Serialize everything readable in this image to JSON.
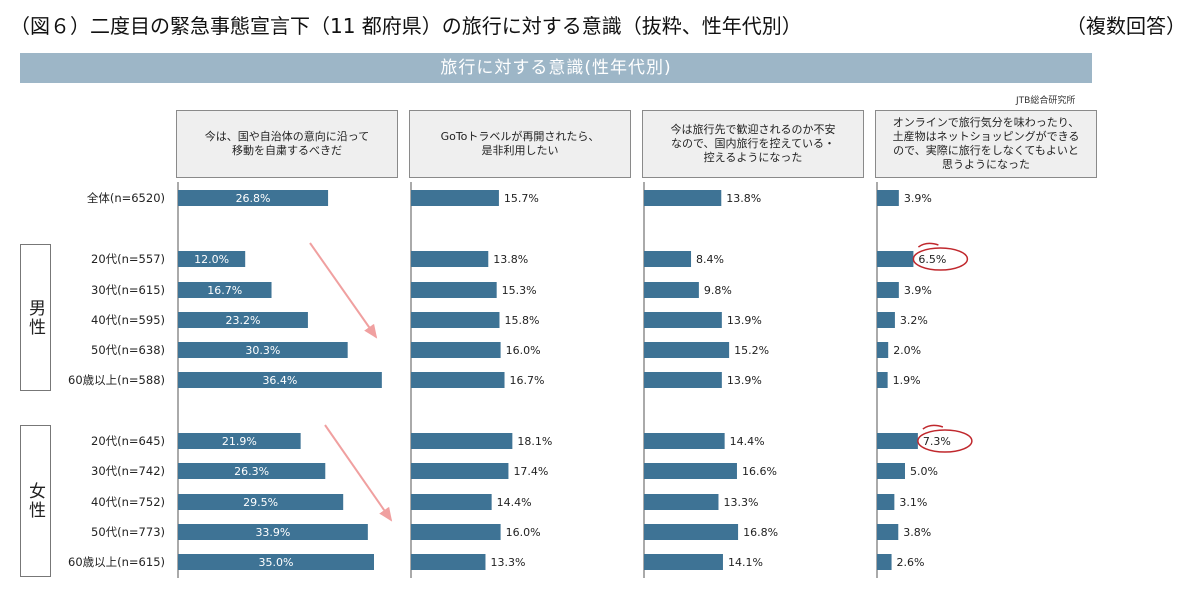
{
  "title": "（図６）二度目の緊急事態宣言下（11 都府県）の旅行に対する意識（抜粋、性年代別）",
  "note": "（複数回答）",
  "banner": "旅行に対する意識(性年代別)",
  "source": "JTB総合研究所",
  "groups": {
    "male": "男性",
    "female": "女性"
  },
  "colors": {
    "bar": "#3e7395",
    "circle": "#c0282d",
    "arrow": "#f0a0a0"
  },
  "chart_data": {
    "type": "bar",
    "orientation": "horizontal",
    "title": "旅行に対する意識(性年代別)",
    "categories": [
      "全体(n=6520)",
      "20代(n=557)",
      "30代(n=615)",
      "40代(n=595)",
      "50代(n=638)",
      "60歳以上(n=588)",
      "20代(n=645)",
      "30代(n=742)",
      "40代(n=752)",
      "50代(n=773)",
      "60歳以上(n=615)"
    ],
    "category_groups": [
      "",
      "男性",
      "男性",
      "男性",
      "男性",
      "男性",
      "女性",
      "女性",
      "女性",
      "女性",
      "女性"
    ],
    "unit": "%",
    "series": [
      {
        "name": "今は、国や自治体の意向に沿って\n移動を自粛するべきだ",
        "values": [
          26.8,
          12.0,
          16.7,
          23.2,
          30.3,
          36.4,
          21.9,
          26.3,
          29.5,
          33.9,
          35.0
        ],
        "labels": [
          "26.8%",
          "12.0%",
          "16.7%",
          "23.2%",
          "30.3%",
          "36.4%",
          "21.9%",
          "26.3%",
          "29.5%",
          "33.9%",
          "35.0%"
        ]
      },
      {
        "name": "GoToトラベルが再開されたら、\n是非利用したい",
        "values": [
          15.7,
          13.8,
          15.3,
          15.8,
          16.0,
          16.7,
          18.1,
          17.4,
          14.4,
          16.0,
          13.3
        ],
        "labels": [
          "15.7%",
          "13.8%",
          "15.3%",
          "15.8%",
          "16.0%",
          "16.7%",
          "18.1%",
          "17.4%",
          "14.4%",
          "16.0%",
          "13.3%"
        ]
      },
      {
        "name": "今は旅行先で歓迎されるのか不安\nなので、国内旅行を控えている・\n控えるようになった",
        "values": [
          13.8,
          8.4,
          9.8,
          13.9,
          15.2,
          13.9,
          14.4,
          16.6,
          13.3,
          16.8,
          14.1
        ],
        "labels": [
          "13.8%",
          "8.4%",
          "9.8%",
          "13.9%",
          "15.2%",
          "13.9%",
          "14.4%",
          "16.6%",
          "13.3%",
          "16.8%",
          "14.1%"
        ]
      },
      {
        "name": "オンラインで旅行気分を味わったり、\n土産物はネットショッピングができる\nので、実際に旅行をしなくてもよいと\n思うようになった",
        "values": [
          3.9,
          6.5,
          3.9,
          3.2,
          2.0,
          1.9,
          7.3,
          5.0,
          3.1,
          3.8,
          2.6
        ],
        "labels": [
          "3.9%",
          "6.5%",
          "3.9%",
          "3.2%",
          "2.0%",
          "1.9%",
          "7.3%",
          "5.0%",
          "3.1%",
          "3.8%",
          "2.6%"
        ]
      }
    ],
    "highlighted": [
      {
        "series": 3,
        "index": 1
      },
      {
        "series": 3,
        "index": 6
      }
    ],
    "trend_arrows": [
      {
        "series": 0,
        "group": "男性"
      },
      {
        "series": 0,
        "group": "女性"
      }
    ]
  }
}
